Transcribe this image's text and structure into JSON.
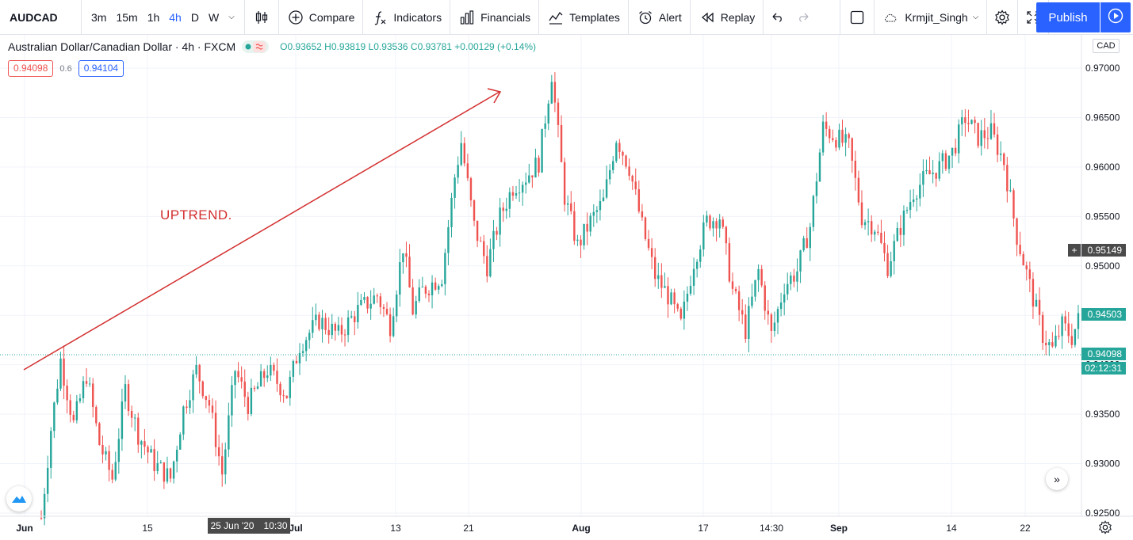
{
  "toolbar": {
    "symbol": "AUDCAD",
    "intervals": [
      "3m",
      "15m",
      "1h",
      "4h",
      "D",
      "W"
    ],
    "active_interval": "4h",
    "compare_label": "Compare",
    "indicators_label": "Indicators",
    "financials_label": "Financials",
    "templates_label": "Templates",
    "alert_label": "Alert",
    "replay_label": "Replay",
    "username": "Krmjit_Singh",
    "publish_label": "Publish"
  },
  "legend": {
    "title": "Australian Dollar/Canadian Dollar · 4h · FXCM",
    "ohlc": "O0.93652 H0.93819 L0.93536 C0.93781 +0.00129 (+0.14%)",
    "sell_price": "0.94098",
    "spread": "0.6",
    "buy_price": "0.94104"
  },
  "axis": {
    "currency": "CAD",
    "y_ticks": [
      "0.97000",
      "0.96500",
      "0.96000",
      "0.95500",
      "0.95000",
      "0.94500",
      "0.94000",
      "0.93500",
      "0.93000",
      "0.92500"
    ],
    "x_ticks": [
      "Jun",
      "15",
      "Jul",
      "13",
      "21",
      "Aug",
      "17",
      "14:30",
      "Sep",
      "14",
      "22"
    ],
    "crosshair_price": "0.95149",
    "high_marker": "0.94503",
    "last_price": "0.94098",
    "countdown": "02:12:31",
    "crosshair_date": "25 Jun '20",
    "crosshair_time": "10:30"
  },
  "annotation": {
    "text": "UPTREND."
  },
  "colors": {
    "up": "#26a69a",
    "down": "#ef5350",
    "accent": "#2962ff",
    "annotation": "#d32f2f"
  },
  "chart_data": {
    "type": "candlestick",
    "xlabel": "",
    "ylabel": "",
    "ylim": [
      0.925,
      0.972
    ],
    "anchor_path": [
      [
        0,
        0.9245
      ],
      [
        3,
        0.9335
      ],
      [
        6,
        0.9405
      ],
      [
        10,
        0.934
      ],
      [
        14,
        0.939
      ],
      [
        18,
        0.932
      ],
      [
        22,
        0.9285
      ],
      [
        26,
        0.9375
      ],
      [
        30,
        0.933
      ],
      [
        35,
        0.93
      ],
      [
        40,
        0.9285
      ],
      [
        44,
        0.9355
      ],
      [
        48,
        0.9395
      ],
      [
        52,
        0.936
      ],
      [
        56,
        0.929
      ],
      [
        60,
        0.9395
      ],
      [
        64,
        0.936
      ],
      [
        70,
        0.9395
      ],
      [
        76,
        0.937
      ],
      [
        80,
        0.942
      ],
      [
        86,
        0.9445
      ],
      [
        92,
        0.943
      ],
      [
        98,
        0.9455
      ],
      [
        104,
        0.947
      ],
      [
        108,
        0.944
      ],
      [
        112,
        0.952
      ],
      [
        115,
        0.9455
      ],
      [
        118,
        0.9475
      ],
      [
        124,
        0.949
      ],
      [
        128,
        0.959
      ],
      [
        130,
        0.9625
      ],
      [
        134,
        0.954
      ],
      [
        138,
        0.95
      ],
      [
        142,
        0.955
      ],
      [
        146,
        0.958
      ],
      [
        150,
        0.959
      ],
      [
        154,
        0.9605
      ],
      [
        158,
        0.9695
      ],
      [
        162,
        0.957
      ],
      [
        166,
        0.952
      ],
      [
        170,
        0.9545
      ],
      [
        174,
        0.9565
      ],
      [
        178,
        0.963
      ],
      [
        182,
        0.96
      ],
      [
        186,
        0.954
      ],
      [
        190,
        0.949
      ],
      [
        194,
        0.947
      ],
      [
        198,
        0.944
      ],
      [
        202,
        0.9505
      ],
      [
        206,
        0.9545
      ],
      [
        210,
        0.955
      ],
      [
        214,
        0.9475
      ],
      [
        218,
        0.9435
      ],
      [
        222,
        0.9495
      ],
      [
        226,
        0.943
      ],
      [
        230,
        0.948
      ],
      [
        234,
        0.9495
      ],
      [
        238,
        0.954
      ],
      [
        242,
        0.964
      ],
      [
        246,
        0.963
      ],
      [
        250,
        0.962
      ],
      [
        254,
        0.955
      ],
      [
        258,
        0.954
      ],
      [
        262,
        0.95
      ],
      [
        266,
        0.954
      ],
      [
        270,
        0.9575
      ],
      [
        274,
        0.959
      ],
      [
        278,
        0.96
      ],
      [
        282,
        0.9615
      ],
      [
        286,
        0.965
      ],
      [
        290,
        0.963
      ],
      [
        294,
        0.9635
      ],
      [
        298,
        0.9605
      ],
      [
        302,
        0.953
      ],
      [
        306,
        0.948
      ],
      [
        310,
        0.943
      ],
      [
        313,
        0.9415
      ],
      [
        316,
        0.944
      ],
      [
        319,
        0.9428
      ],
      [
        321,
        0.9445
      ]
    ]
  }
}
